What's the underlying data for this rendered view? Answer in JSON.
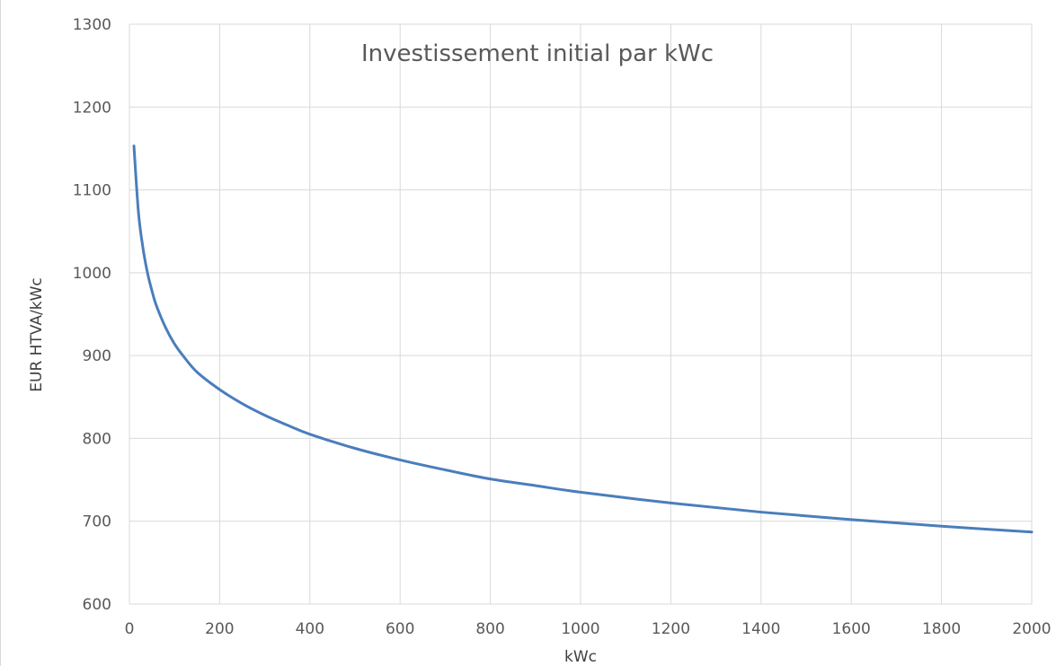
{
  "chart_data": {
    "type": "line",
    "title": "Investissement initial par kWc",
    "xlabel": "kWc",
    "ylabel": "EUR HTVA/kWc",
    "xlim": [
      0,
      2000
    ],
    "ylim": [
      600,
      1300
    ],
    "x_ticks": [
      "0",
      "200",
      "400",
      "600",
      "800",
      "1000",
      "1200",
      "1400",
      "1600",
      "1800",
      "2000"
    ],
    "y_ticks": [
      "600",
      "700",
      "800",
      "900",
      "1000",
      "1100",
      "1200",
      "1300"
    ],
    "grid": true,
    "legend": "none",
    "series": [
      {
        "color": "#4a7ebb",
        "x": [
          10,
          20,
          30,
          40,
          50,
          60,
          80,
          100,
          120,
          150,
          200,
          250,
          300,
          350,
          400,
          500,
          600,
          700,
          800,
          900,
          1000,
          1200,
          1400,
          1600,
          1800,
          2000
        ],
        "y": [
          1153,
          1073,
          1030,
          1000,
          978,
          960,
          934,
          914,
          899,
          880,
          859,
          842,
          828,
          816,
          805,
          788,
          774,
          762,
          751,
          743,
          735,
          722,
          711,
          702,
          694,
          687
        ]
      }
    ]
  }
}
